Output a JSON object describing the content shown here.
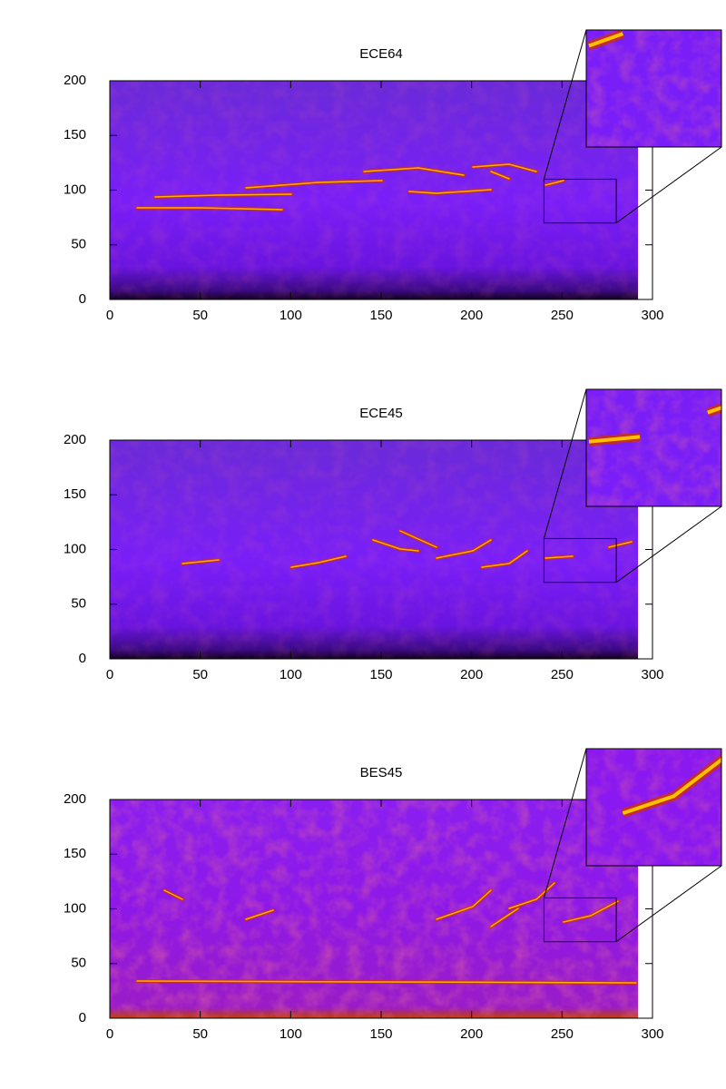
{
  "chart_data": [
    {
      "type": "heatmap",
      "title": "ECE64",
      "xlim": [
        0,
        300
      ],
      "ylim": [
        0,
        200
      ],
      "xticks": [
        0,
        50,
        100,
        150,
        200,
        250,
        300
      ],
      "yticks": [
        0,
        50,
        100,
        150,
        200
      ],
      "image_extent": {
        "x": [
          0,
          292
        ],
        "y": [
          0,
          200
        ]
      },
      "zoom": {
        "x": [
          240,
          280
        ],
        "y": [
          70,
          110
        ]
      }
    },
    {
      "type": "heatmap",
      "title": "ECE45",
      "xlim": [
        0,
        300
      ],
      "ylim": [
        0,
        200
      ],
      "xticks": [
        0,
        50,
        100,
        150,
        200,
        250,
        300
      ],
      "yticks": [
        0,
        50,
        100,
        150,
        200
      ],
      "image_extent": {
        "x": [
          0,
          292
        ],
        "y": [
          0,
          200
        ]
      },
      "zoom": {
        "x": [
          240,
          280
        ],
        "y": [
          70,
          110
        ]
      }
    },
    {
      "type": "heatmap",
      "title": "BES45",
      "xlim": [
        0,
        300
      ],
      "ylim": [
        0,
        200
      ],
      "xticks": [
        0,
        50,
        100,
        150,
        200,
        250,
        300
      ],
      "yticks": [
        0,
        50,
        100,
        150,
        200
      ],
      "image_extent": {
        "x": [
          0,
          292
        ],
        "y": [
          0,
          200
        ]
      },
      "zoom": {
        "x": [
          240,
          280
        ],
        "y": [
          70,
          110
        ]
      }
    }
  ]
}
